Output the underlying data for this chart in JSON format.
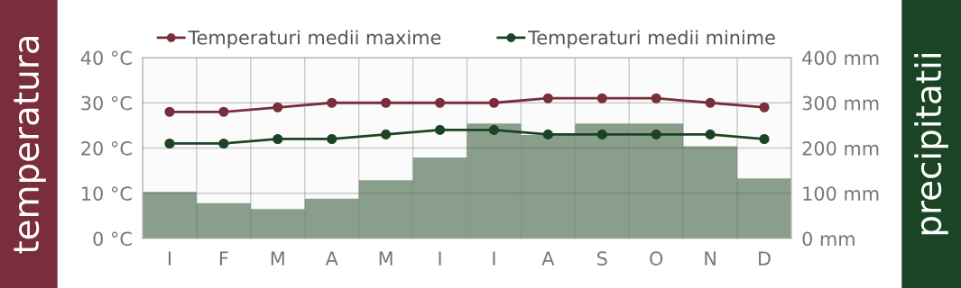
{
  "chart_data": {
    "type": "line",
    "ylabel": "temperatura",
    "y2label": "precipitatii",
    "categories": [
      "I",
      "F",
      "M",
      "A",
      "M",
      "I",
      "I",
      "A",
      "S",
      "O",
      "N",
      "D"
    ],
    "series": [
      {
        "type": "bar",
        "axis": "y2",
        "color": "#8a9e8c",
        "values": [
          103,
          78,
          65,
          88,
          129,
          179,
          254,
          229,
          254,
          254,
          204,
          133
        ]
      },
      {
        "name": "Temperaturi medii maxime",
        "color": "#7a2e3b",
        "values": [
          28,
          28,
          29,
          30,
          30,
          30,
          30,
          31,
          31,
          31,
          30,
          29
        ]
      },
      {
        "name": "Temperaturi medii minime",
        "color": "#1b4424",
        "values": [
          21,
          21,
          22,
          22,
          23,
          24,
          24,
          23,
          23,
          23,
          23,
          22
        ]
      }
    ],
    "ylim": [
      0,
      40
    ],
    "yticks": [
      {
        "value": 0,
        "label": "0 °C"
      },
      {
        "value": 10,
        "label": "10 °C"
      },
      {
        "value": 20,
        "label": "20 °C"
      },
      {
        "value": 30,
        "label": "30 °C"
      },
      {
        "value": 40,
        "label": "40 °C"
      }
    ],
    "y2lim": [
      0,
      400
    ],
    "y2ticks": [
      {
        "value": 0,
        "label": "0 mm"
      },
      {
        "value": 100,
        "label": "100 mm"
      },
      {
        "value": 200,
        "label": "200 mm"
      },
      {
        "value": 300,
        "label": "300 mm"
      },
      {
        "value": 400,
        "label": "400 mm"
      }
    ],
    "grid": true,
    "legend": "top",
    "marker": "circle",
    "line_style": "solid"
  }
}
